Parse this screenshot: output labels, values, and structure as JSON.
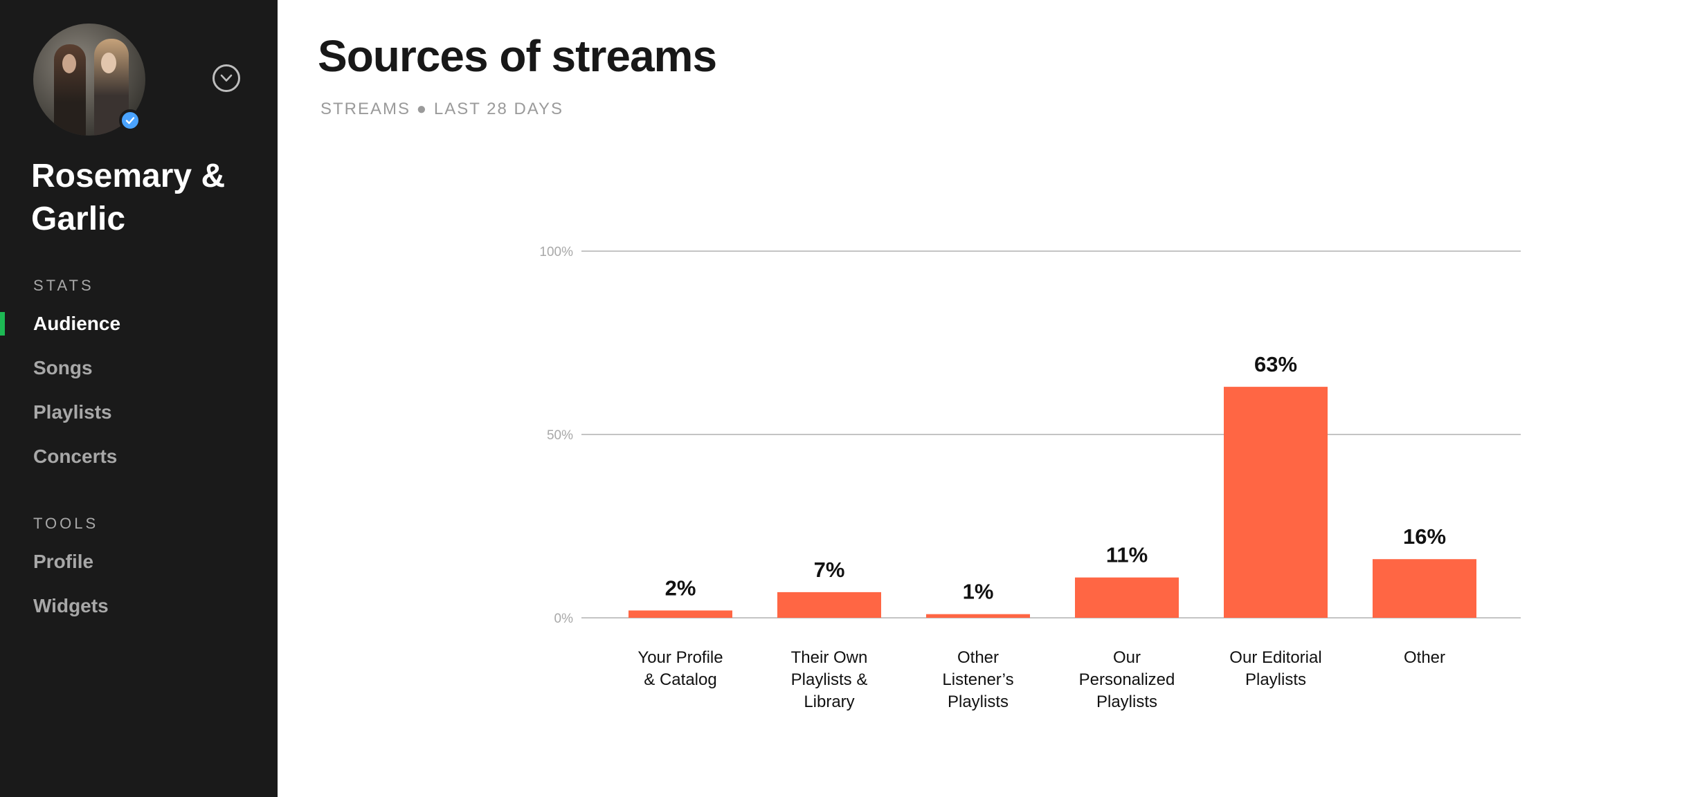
{
  "sidebar": {
    "artist_name": "Rosemary & Garlic",
    "sections": [
      {
        "label": "STATS",
        "items": [
          "Audience",
          "Songs",
          "Playlists",
          "Concerts"
        ]
      },
      {
        "label": "TOOLS",
        "items": [
          "Profile",
          "Widgets"
        ]
      }
    ],
    "active_item": "Audience",
    "icons": {
      "dropdown": "chevron-down-icon",
      "verified": "verified-check-icon"
    },
    "colors": {
      "background": "#1a1a1a",
      "active_indicator": "#1db954",
      "verified_badge": "#4aa3ff"
    }
  },
  "main": {
    "title": "Sources of streams",
    "subtitle": "STREAMS ● LAST 28 DAYS"
  },
  "chart_data": {
    "type": "bar",
    "title": "",
    "xlabel": "",
    "ylabel": "",
    "ylim": [
      0,
      100
    ],
    "yticks": [
      0,
      50,
      100
    ],
    "ytick_labels": [
      "0%",
      "50%",
      "100%"
    ],
    "grid": true,
    "legend": "none",
    "bar_color": "#ff6644",
    "categories": [
      [
        "Your Profile",
        "& Catalog"
      ],
      [
        "Their Own",
        "Playlists &",
        "Library"
      ],
      [
        "Other",
        "Listener’s",
        "Playlists"
      ],
      [
        "Our",
        "Personalized",
        "Playlists"
      ],
      [
        "Our Editorial",
        "Playlists"
      ],
      [
        "Other"
      ]
    ],
    "values": [
      2,
      7,
      1,
      11,
      63,
      16
    ],
    "value_labels": [
      "2%",
      "7%",
      "1%",
      "11%",
      "63%",
      "16%"
    ]
  }
}
